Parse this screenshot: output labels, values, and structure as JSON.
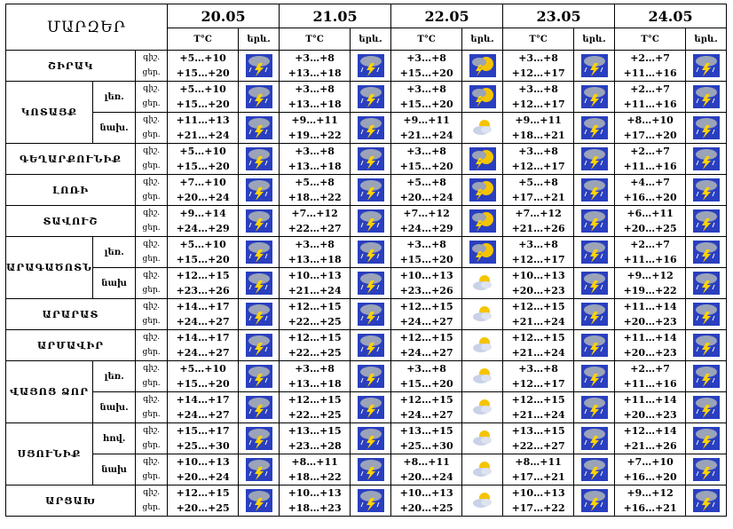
{
  "header": {
    "title": "ՄԱՐԶԵՐ",
    "dates": [
      "20.05",
      "21.05",
      "22.05",
      "23.05",
      "24.05"
    ],
    "temp_label": "T°C",
    "precip_label": "երև."
  },
  "rows": [
    {
      "region": "ՇԻՐԱԿ",
      "sub": "",
      "night": "գիշ.",
      "day": "ցեր.",
      "cells": [
        {
          "n": "+5…+10",
          "d": "+15…+20",
          "icon": "thunderstorm"
        },
        {
          "n": "+3…+8",
          "d": "+13…+18",
          "icon": "thunderstorm"
        },
        {
          "n": "+3…+8",
          "d": "+15…+20",
          "icon": "sun-thunderstorm"
        },
        {
          "n": "+3…+8",
          "d": "+12…+17",
          "icon": "thunderstorm"
        },
        {
          "n": "+2…+7",
          "d": "+11…+16",
          "icon": "thunderstorm"
        }
      ]
    },
    {
      "region": "ԿՈՏԱՅՔ",
      "sub": "լեռ.",
      "night": "գիշ.",
      "day": "ցեր.",
      "cells": [
        {
          "n": "+5…+10",
          "d": "+15…+20",
          "icon": "thunderstorm"
        },
        {
          "n": "+3…+8",
          "d": "+13…+18",
          "icon": "thunderstorm"
        },
        {
          "n": "+3…+8",
          "d": "+15…+20",
          "icon": "sun-thunderstorm"
        },
        {
          "n": "+3…+8",
          "d": "+12…+17",
          "icon": "thunderstorm"
        },
        {
          "n": "+2…+7",
          "d": "+11…+16",
          "icon": "thunderstorm"
        }
      ]
    },
    {
      "region": "",
      "sub": "նախ.",
      "night": "գիշ.",
      "day": "ցեր.",
      "cells": [
        {
          "n": "+11…+13",
          "d": "+21…+24",
          "icon": "thunderstorm"
        },
        {
          "n": "+9…+11",
          "d": "+19…+22",
          "icon": "thunderstorm"
        },
        {
          "n": "+9…+11",
          "d": "+21…+24",
          "icon": "partly-cloudy"
        },
        {
          "n": "+9…+11",
          "d": "+18…+21",
          "icon": "thunderstorm"
        },
        {
          "n": "+8…+10",
          "d": "+17…+20",
          "icon": "thunderstorm"
        }
      ]
    },
    {
      "region": "ԳԵՂԱՐՔՈՒՆԻՔ",
      "sub": "",
      "night": "գիշ.",
      "day": "ցեր.",
      "cells": [
        {
          "n": "+5…+10",
          "d": "+15…+20",
          "icon": "thunderstorm"
        },
        {
          "n": "+3…+8",
          "d": "+13…+18",
          "icon": "thunderstorm"
        },
        {
          "n": "+3…+8",
          "d": "+15…+20",
          "icon": "sun-thunderstorm"
        },
        {
          "n": "+3…+8",
          "d": "+12…+17",
          "icon": "thunderstorm"
        },
        {
          "n": "+2…+7",
          "d": "+11…+16",
          "icon": "thunderstorm"
        }
      ]
    },
    {
      "region": "ԼՈՌԻ",
      "sub": "",
      "night": "գիշ.",
      "day": "ցեր.",
      "cells": [
        {
          "n": "+7…+10",
          "d": "+20…+24",
          "icon": "thunderstorm"
        },
        {
          "n": "+5…+8",
          "d": "+18…+22",
          "icon": "thunderstorm"
        },
        {
          "n": "+5…+8",
          "d": "+20…+24",
          "icon": "sun-thunderstorm"
        },
        {
          "n": "+5…+8",
          "d": "+17…+21",
          "icon": "thunderstorm"
        },
        {
          "n": "+4…+7",
          "d": "+16…+20",
          "icon": "thunderstorm"
        }
      ]
    },
    {
      "region": "ՏԱՎՈՒՇ",
      "sub": "",
      "night": "գիշ.",
      "day": "ցեր.",
      "cells": [
        {
          "n": "+9…+14",
          "d": "+24…+29",
          "icon": "thunderstorm"
        },
        {
          "n": "+7…+12",
          "d": "+22…+27",
          "icon": "thunderstorm"
        },
        {
          "n": "+7…+12",
          "d": "+24…+29",
          "icon": "sun-thunderstorm"
        },
        {
          "n": "+7…+12",
          "d": "+21…+26",
          "icon": "thunderstorm"
        },
        {
          "n": "+6…+11",
          "d": "+20…+25",
          "icon": "thunderstorm"
        }
      ]
    },
    {
      "region": "ԱՐԱԳԱԾՈՏՆ",
      "sub": "լեռ.",
      "night": "գիշ.",
      "day": "ցեր.",
      "cells": [
        {
          "n": "+5…+10",
          "d": "+15…+20",
          "icon": "thunderstorm"
        },
        {
          "n": "+3…+8",
          "d": "+13…+18",
          "icon": "thunderstorm"
        },
        {
          "n": "+3…+8",
          "d": "+15…+20",
          "icon": "sun-thunderstorm"
        },
        {
          "n": "+3…+8",
          "d": "+12…+17",
          "icon": "thunderstorm"
        },
        {
          "n": "+2…+7",
          "d": "+11…+16",
          "icon": "thunderstorm"
        }
      ]
    },
    {
      "region": "",
      "sub": "նախ",
      "night": "գիշ.",
      "day": "ցեր.",
      "cells": [
        {
          "n": "+12…+15",
          "d": "+23…+26",
          "icon": "thunderstorm"
        },
        {
          "n": "+10…+13",
          "d": "+21…+24",
          "icon": "thunderstorm"
        },
        {
          "n": "+10…+13",
          "d": "+23…+26",
          "icon": "partly-cloudy"
        },
        {
          "n": "+10…+13",
          "d": "+20…+23",
          "icon": "thunderstorm"
        },
        {
          "n": "+9…+12",
          "d": "+19…+22",
          "icon": "thunderstorm"
        }
      ]
    },
    {
      "region": "ԱՐԱՐԱՏ",
      "sub": "",
      "night": "գիշ.",
      "day": "ցեր.",
      "cells": [
        {
          "n": "+14…+17",
          "d": "+24…+27",
          "icon": "thunderstorm"
        },
        {
          "n": "+12…+15",
          "d": "+22…+25",
          "icon": "thunderstorm"
        },
        {
          "n": "+12…+15",
          "d": "+24…+27",
          "icon": "partly-cloudy"
        },
        {
          "n": "+12…+15",
          "d": "+21…+24",
          "icon": "thunderstorm"
        },
        {
          "n": "+11…+14",
          "d": "+20…+23",
          "icon": "thunderstorm"
        }
      ]
    },
    {
      "region": "ԱՐՄԱՎԻՐ",
      "sub": "",
      "night": "գիշ.",
      "day": "ցեր.",
      "cells": [
        {
          "n": "+14…+17",
          "d": "+24…+27",
          "icon": "thunderstorm"
        },
        {
          "n": "+12…+15",
          "d": "+22…+25",
          "icon": "thunderstorm"
        },
        {
          "n": "+12…+15",
          "d": "+24…+27",
          "icon": "partly-cloudy"
        },
        {
          "n": "+12…+15",
          "d": "+21…+24",
          "icon": "thunderstorm"
        },
        {
          "n": "+11…+14",
          "d": "+20…+23",
          "icon": "thunderstorm"
        }
      ]
    },
    {
      "region": "ՎԱՅՈՑ ՁՈՐ",
      "sub": "լեռ.",
      "night": "գիշ.",
      "day": "ցեր.",
      "cells": [
        {
          "n": "+5…+10",
          "d": "+15…+20",
          "icon": "thunderstorm"
        },
        {
          "n": "+3…+8",
          "d": "+13…+18",
          "icon": "thunderstorm"
        },
        {
          "n": "+3…+8",
          "d": "+15…+20",
          "icon": "partly-cloudy"
        },
        {
          "n": "+3…+8",
          "d": "+12…+17",
          "icon": "thunderstorm"
        },
        {
          "n": "+2…+7",
          "d": "+11…+16",
          "icon": "thunderstorm"
        }
      ]
    },
    {
      "region": "",
      "sub": "նախ.",
      "night": "գիշ.",
      "day": "ցեր.",
      "cells": [
        {
          "n": "+14…+17",
          "d": "+24…+27",
          "icon": "thunderstorm"
        },
        {
          "n": "+12…+15",
          "d": "+22…+25",
          "icon": "thunderstorm"
        },
        {
          "n": "+12…+15",
          "d": "+24…+27",
          "icon": "partly-cloudy"
        },
        {
          "n": "+12…+15",
          "d": "+21…+24",
          "icon": "thunderstorm"
        },
        {
          "n": "+11…+14",
          "d": "+20…+23",
          "icon": "thunderstorm"
        }
      ]
    },
    {
      "region": "ՍՅՈՒՆԻՔ",
      "sub": "հով.",
      "night": "գիշ.",
      "day": "ցեր.",
      "cells": [
        {
          "n": "+15…+17",
          "d": "+25…+30",
          "icon": "thunderstorm"
        },
        {
          "n": "+13…+15",
          "d": "+23…+28",
          "icon": "thunderstorm"
        },
        {
          "n": "+13…+15",
          "d": "+25…+30",
          "icon": "partly-cloudy"
        },
        {
          "n": "+13…+15",
          "d": "+22…+27",
          "icon": "thunderstorm"
        },
        {
          "n": "+12…+14",
          "d": "+21…+26",
          "icon": "thunderstorm"
        }
      ]
    },
    {
      "region": "",
      "sub": "նախ",
      "night": "գիշ.",
      "day": "ցեր.",
      "cells": [
        {
          "n": "+10…+13",
          "d": "+20…+24",
          "icon": "thunderstorm"
        },
        {
          "n": "+8…+11",
          "d": "+18…+22",
          "icon": "thunderstorm"
        },
        {
          "n": "+8…+11",
          "d": "+20…+24",
          "icon": "partly-cloudy"
        },
        {
          "n": "+8…+11",
          "d": "+17…+21",
          "icon": "thunderstorm"
        },
        {
          "n": "+7…+10",
          "d": "+16…+20",
          "icon": "thunderstorm"
        }
      ]
    },
    {
      "region": "ԱՐՑԱԽ",
      "sub": "",
      "night": "գիշ.",
      "day": "ցեր.",
      "cells": [
        {
          "n": "+12…+15",
          "d": "+20…+25",
          "icon": "thunderstorm"
        },
        {
          "n": "+10…+13",
          "d": "+18…+23",
          "icon": "thunderstorm"
        },
        {
          "n": "+10…+13",
          "d": "+20…+25",
          "icon": "partly-cloudy"
        },
        {
          "n": "+10…+13",
          "d": "+17…+22",
          "icon": "thunderstorm"
        },
        {
          "n": "+9…+12",
          "d": "+16…+21",
          "icon": "thunderstorm"
        }
      ]
    }
  ],
  "colors": {
    "icon_sky": "#2a3fbf",
    "icon_cloud": "#9aa3b8",
    "bolt": "#ffd200",
    "sun": "#f5c400"
  }
}
